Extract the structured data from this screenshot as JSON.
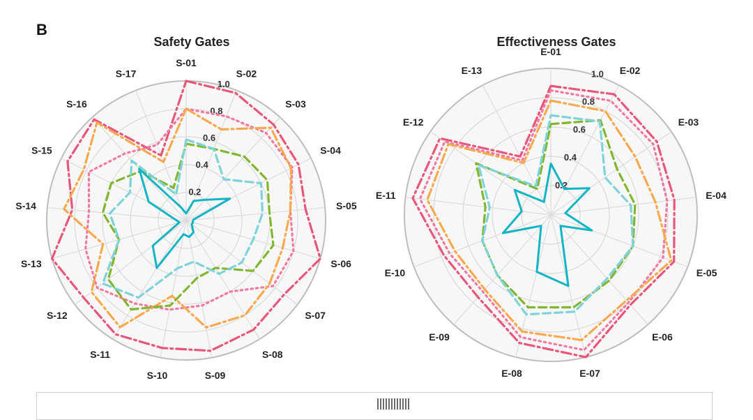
{
  "panel_label": "B",
  "chart_data": [
    {
      "type": "radar",
      "title": "Safety Gates",
      "categories": [
        "S-01",
        "S-02",
        "S-03",
        "S-04",
        "S-05",
        "S-06",
        "S-07",
        "S-08",
        "S-09",
        "S-10",
        "S-11",
        "S-12",
        "S-13",
        "S-14",
        "S-15",
        "S-16",
        "S-17"
      ],
      "rlim": [
        0,
        1.0
      ],
      "rticks": [
        "0.2",
        "0.4",
        "0.6",
        "0.8",
        "1.0"
      ],
      "grid": true,
      "series": [
        {
          "color": "#e8567a",
          "style": "dashdot",
          "values": [
            1.0,
            0.98,
            0.93,
            0.9,
            0.86,
            1.0,
            0.88,
            0.92,
            0.95,
            0.93,
            0.96,
            0.92,
            1.0,
            0.82,
            0.95,
            0.98,
            0.5
          ]
        },
        {
          "color": "#f27aa0",
          "style": "dotted",
          "values": [
            0.8,
            0.8,
            0.85,
            0.85,
            0.75,
            0.8,
            0.78,
            0.6,
            0.62,
            0.65,
            0.7,
            0.8,
            0.75,
            0.7,
            0.78,
            0.65,
            0.58
          ]
        },
        {
          "color": "#f6a94e",
          "style": "dashdot",
          "values": [
            0.8,
            0.7,
            0.9,
            0.84,
            0.75,
            0.72,
            0.75,
            0.8,
            0.78,
            0.55,
            0.9,
            0.85,
            0.62,
            0.88,
            0.82,
            0.95,
            0.45
          ]
        },
        {
          "color": "#82b62e",
          "style": "dashed",
          "values": [
            0.55,
            0.55,
            0.62,
            0.65,
            0.6,
            0.65,
            0.6,
            0.4,
            0.42,
            0.62,
            0.75,
            0.7,
            0.5,
            0.6,
            0.6,
            0.48,
            0.25
          ]
        },
        {
          "color": "#7dd3d8",
          "style": "dashed",
          "values": [
            0.58,
            0.55,
            0.4,
            0.6,
            0.55,
            0.5,
            0.5,
            0.45,
            0.3,
            0.35,
            0.65,
            0.75,
            0.5,
            0.55,
            0.45,
            0.58,
            0.2
          ]
        },
        {
          "color": "#13b4c4",
          "style": "solid",
          "values": [
            0.05,
            0.15,
            0.2,
            0.35,
            0.05,
            0.05,
            0.05,
            0.1,
            0.12,
            0.1,
            0.4,
            0.3,
            0.05,
            0.08,
            0.3,
            0.5,
            0.1
          ]
        }
      ]
    },
    {
      "type": "radar",
      "title": "Effectiveness Gates",
      "categories": [
        "E-01",
        "E-02",
        "E-03",
        "E-04",
        "E-05",
        "E-06",
        "E-07",
        "E-08",
        "E-09",
        "E-10",
        "E-11",
        "E-12",
        "E-13"
      ],
      "rlim": [
        0,
        1.0
      ],
      "rticks": [
        "0.2",
        "0.4",
        "0.6",
        "0.8",
        "1.0"
      ],
      "grid": true,
      "series": [
        {
          "color": "#e8567a",
          "style": "dashdot",
          "values": [
            0.88,
            0.93,
            0.88,
            0.85,
            0.9,
            0.82,
            1.0,
            0.9,
            0.75,
            0.78,
            0.95,
            0.92,
            0.45
          ]
        },
        {
          "color": "#f27aa0",
          "style": "dotted",
          "values": [
            0.85,
            0.88,
            0.85,
            0.8,
            0.82,
            0.8,
            0.95,
            0.86,
            0.7,
            0.74,
            0.9,
            0.88,
            0.42
          ]
        },
        {
          "color": "#f6a94e",
          "style": "dashdot",
          "values": [
            0.78,
            0.8,
            0.7,
            0.72,
            0.88,
            0.78,
            0.88,
            0.82,
            0.68,
            0.7,
            0.85,
            0.85,
            0.4
          ]
        },
        {
          "color": "#82b62e",
          "style": "dashed",
          "values": [
            0.62,
            0.73,
            0.55,
            0.58,
            0.6,
            0.6,
            0.65,
            0.65,
            0.55,
            0.5,
            0.45,
            0.62,
            0.2
          ]
        },
        {
          "color": "#7dd3d8",
          "style": "dashed",
          "values": [
            0.68,
            0.72,
            0.45,
            0.55,
            0.6,
            0.58,
            0.68,
            0.7,
            0.55,
            0.5,
            0.42,
            0.6,
            0.22
          ]
        },
        {
          "color": "#13b4c4",
          "style": "solid",
          "values": [
            0.35,
            0.2,
            0.32,
            0.1,
            0.3,
            0.1,
            0.5,
            0.4,
            0.1,
            0.35,
            0.2,
            0.3,
            0.1
          ]
        }
      ]
    }
  ]
}
